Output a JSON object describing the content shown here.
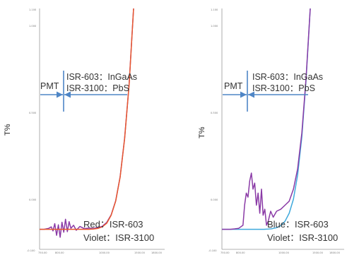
{
  "chart_data": [
    {
      "type": "line",
      "title": "",
      "ylabel": "T%",
      "xlabel": "",
      "xlim": [
        800,
        1800
      ],
      "ylim": [
        -0.1,
        1.1
      ],
      "y_ticks": [
        "1.100",
        "1.000",
        "0.500",
        "0.000",
        "-0.100"
      ],
      "x_ticks": [
        "750.00",
        "800.00",
        "1000.00",
        "1500.00",
        "1800.00"
      ],
      "grid": false,
      "annotations": {
        "left_label": "PMT",
        "right_line1": "ISR-603：InGaAs",
        "right_line2": "ISR-3100：PbS",
        "boundary_x": 870
      },
      "legend": [
        "Red：ISR-603",
        "Violet：ISR-3100"
      ],
      "series": [
        {
          "name": "ISR-603",
          "color": "#e9582e",
          "x": [
            750,
            800,
            850,
            900,
            950,
            1000,
            1050,
            1100,
            1150,
            1200,
            1250,
            1300,
            1350,
            1400,
            1450,
            1500,
            1550,
            1600,
            1650,
            1700,
            1750,
            1800
          ],
          "y": [
            0,
            0,
            0,
            0,
            0,
            0,
            0,
            0,
            0,
            0,
            0,
            0,
            0.001,
            0.004,
            0.012,
            0.03,
            0.07,
            0.14,
            0.26,
            0.45,
            0.72,
            1.1
          ]
        },
        {
          "name": "ISR-3100",
          "color": "#8a3aa6",
          "x": [
            750,
            800,
            850,
            880,
            900,
            920,
            940,
            960,
            980,
            1000,
            1020,
            1040,
            1060,
            1080,
            1100,
            1130,
            1160,
            1200,
            1250,
            1300,
            1350,
            1400,
            1450,
            1500,
            1550,
            1600,
            1650,
            1700,
            1750,
            1800
          ],
          "y": [
            0,
            0,
            0.004,
            0.012,
            -0.008,
            0.028,
            -0.03,
            0.022,
            -0.04,
            0.035,
            -0.015,
            0.05,
            -0.012,
            0.038,
            0.005,
            0.02,
            -0.005,
            0.014,
            0.003,
            0.006,
            0.004,
            0.008,
            0.015,
            0.034,
            0.072,
            0.142,
            0.262,
            0.452,
            0.722,
            1.1
          ]
        }
      ]
    },
    {
      "type": "line",
      "title": "",
      "ylabel": "T%",
      "xlabel": "",
      "xlim": [
        800,
        1800
      ],
      "ylim": [
        -0.1,
        1.1
      ],
      "y_ticks": [
        "1.100",
        "1.000",
        "0.500",
        "0.000",
        "-0.100"
      ],
      "x_ticks": [
        "750.00",
        "800.00",
        "1000.00",
        "1500.00",
        "1800.00"
      ],
      "grid": false,
      "annotations": {
        "left_label": "PMT",
        "right_line1": "ISR-603：InGaAs",
        "right_line2": "ISR-3100：PbS",
        "boundary_x": 870
      },
      "legend": [
        "Blue：ISR-603",
        "Violet：ISR-3100"
      ],
      "series": [
        {
          "name": "ISR-603",
          "color": "#3fa9dc",
          "x": [
            750,
            800,
            850,
            900,
            950,
            1000,
            1050,
            1100,
            1150,
            1200,
            1250,
            1300,
            1350,
            1400,
            1450,
            1500,
            1550,
            1600,
            1650,
            1700,
            1750,
            1800
          ],
          "y": [
            0,
            0,
            0,
            0,
            0,
            0,
            0,
            0,
            0,
            0,
            0,
            0.001,
            0.003,
            0.008,
            0.018,
            0.04,
            0.08,
            0.15,
            0.27,
            0.46,
            0.74,
            1.1
          ]
        },
        {
          "name": "ISR-3100",
          "color": "#8a3aa6",
          "x": [
            750,
            800,
            850,
            900,
            950,
            1000,
            1020,
            1040,
            1060,
            1080,
            1100,
            1120,
            1140,
            1160,
            1180,
            1200,
            1220,
            1240,
            1260,
            1280,
            1300,
            1330,
            1360,
            1400,
            1450,
            1500,
            1550,
            1600,
            1650,
            1700,
            1750,
            1800
          ],
          "y": [
            0,
            0,
            0,
            0.002,
            0.005,
            0.02,
            0.12,
            0.18,
            0.16,
            0.24,
            0.28,
            0.2,
            0.23,
            0.12,
            0.18,
            0.08,
            0.2,
            0.07,
            0.1,
            0.02,
            0.04,
            0.09,
            0.06,
            0.09,
            0.1,
            0.12,
            0.14,
            0.2,
            0.3,
            0.48,
            0.75,
            1.1
          ]
        }
      ]
    }
  ]
}
